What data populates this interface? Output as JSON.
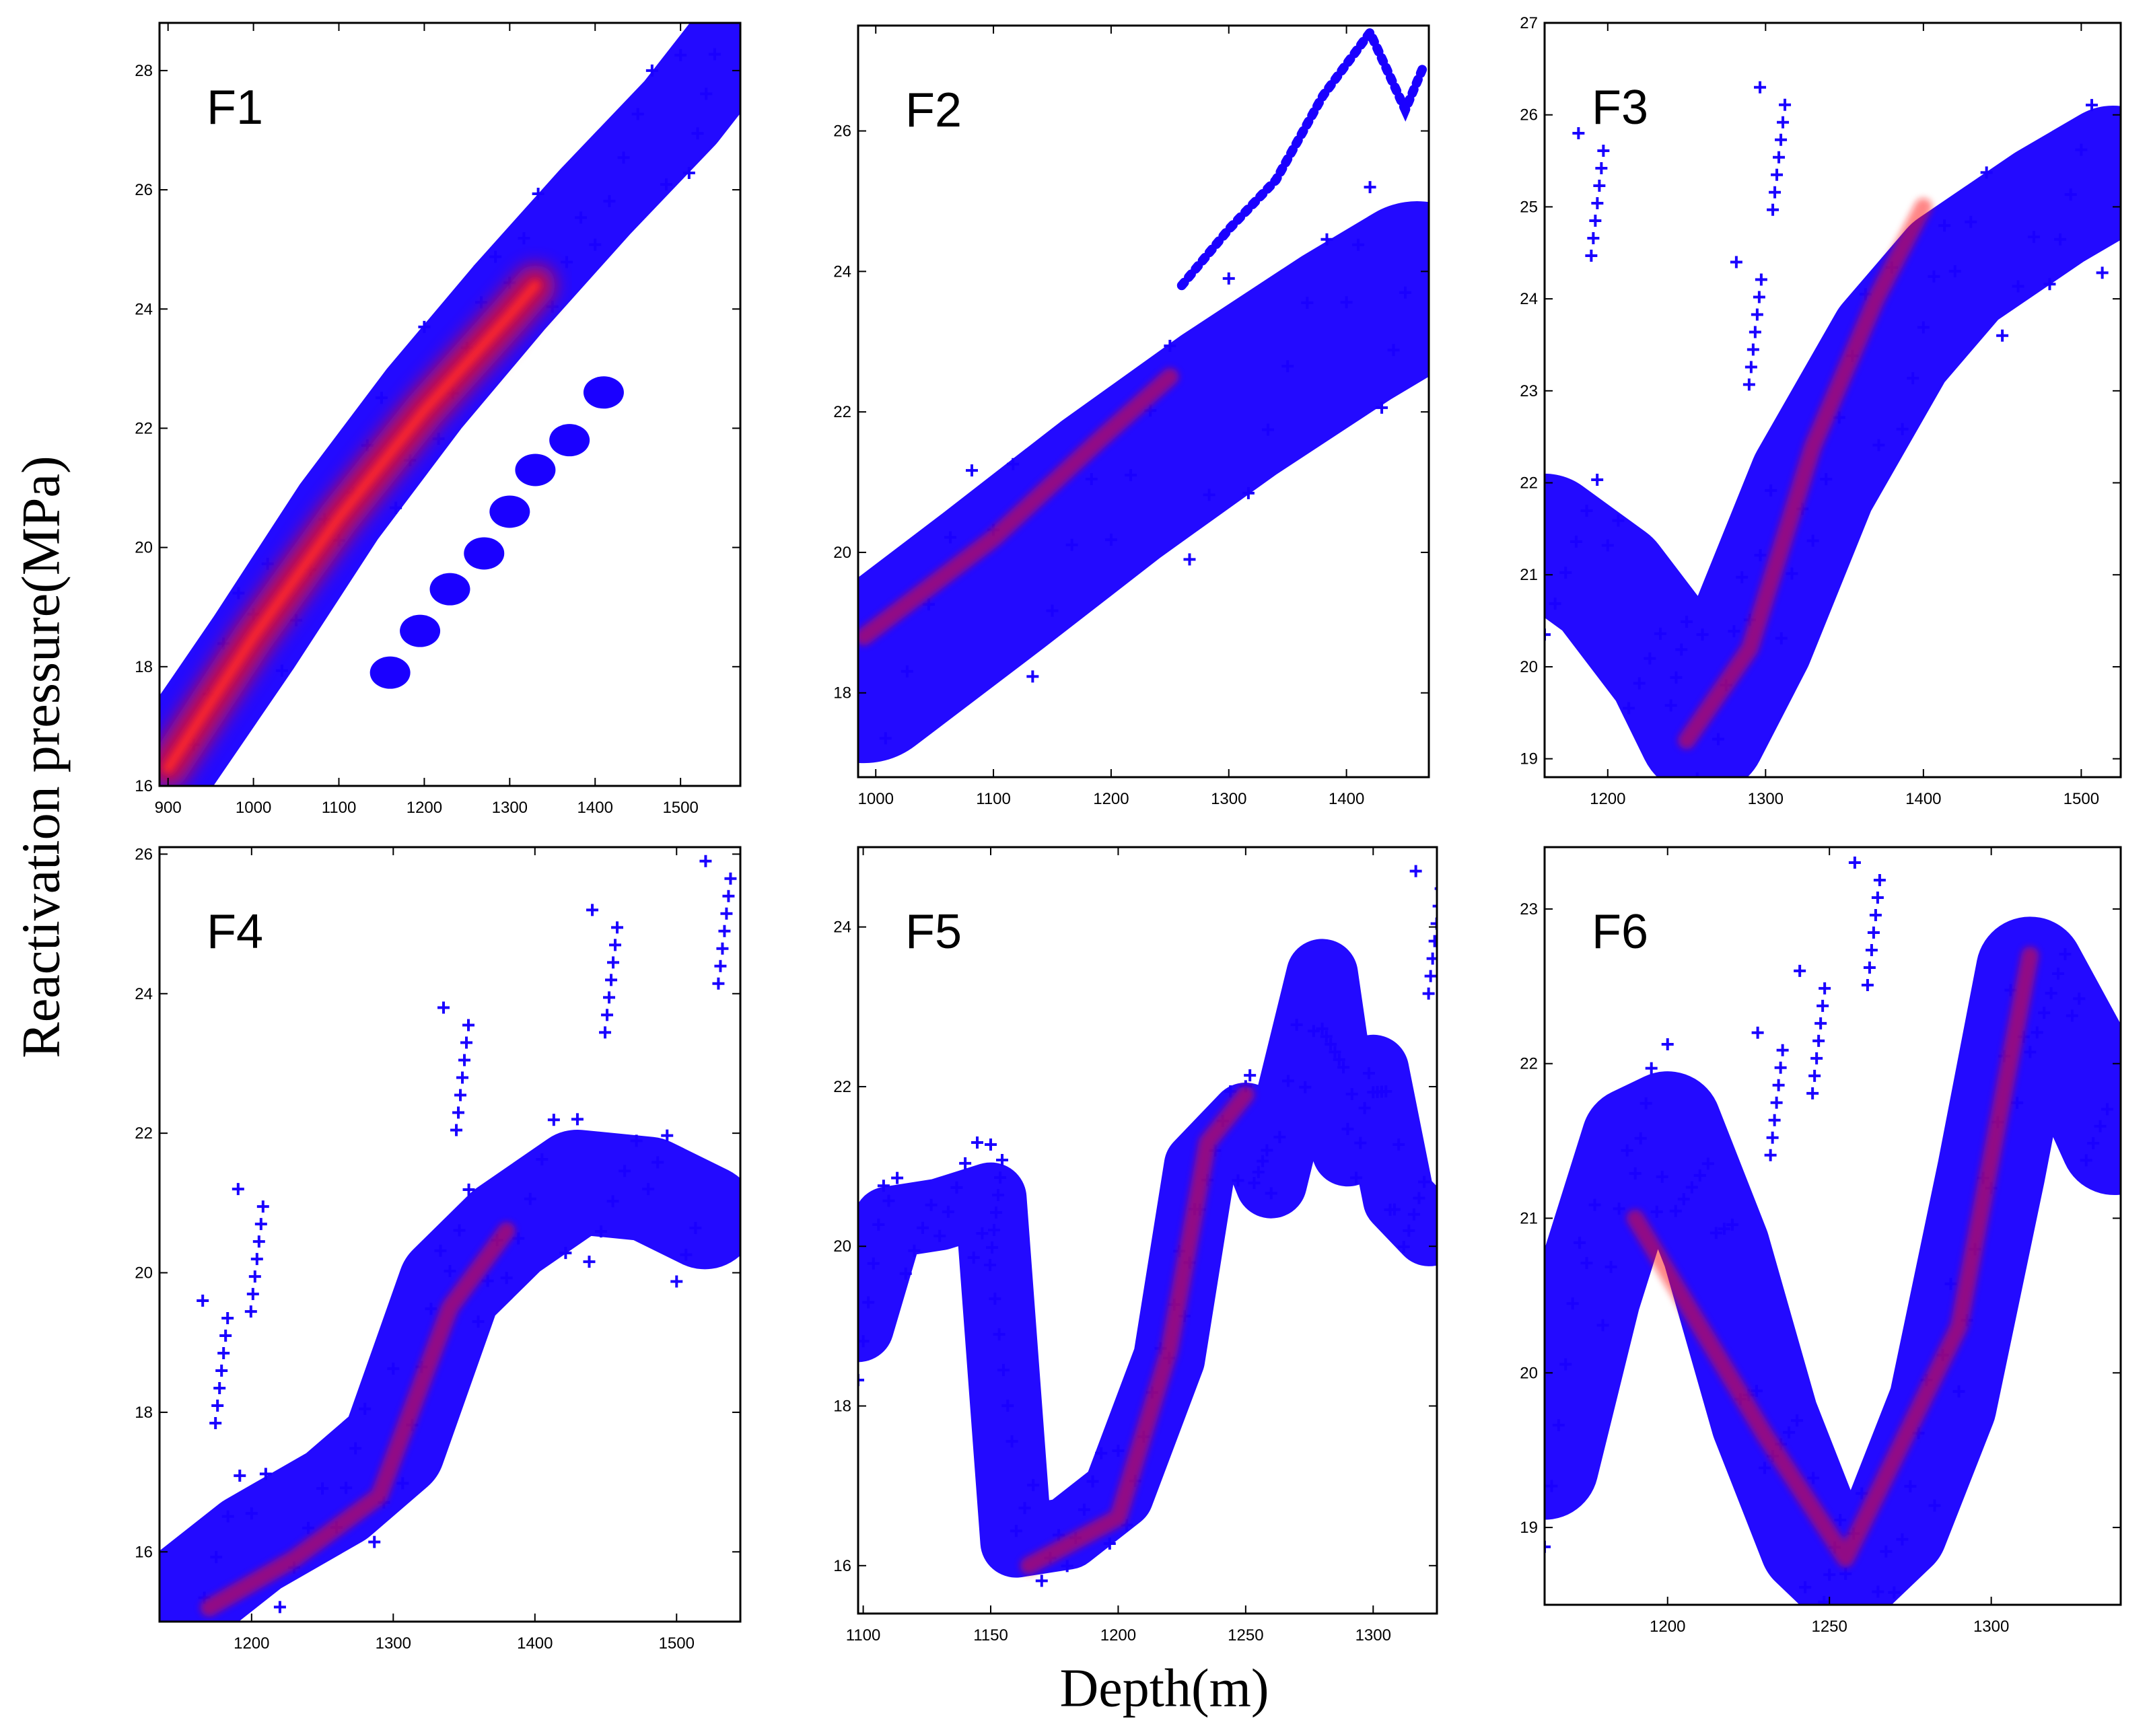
{
  "figure": {
    "ylabel": "Reactivation pressure(MPa)",
    "xlabel": "Depth(m)"
  },
  "colors": {
    "primary": "#1a00ff",
    "hotspot": "#ff1010",
    "frame": "#000000"
  },
  "chart_data": [
    {
      "type": "scatter",
      "title": "F1",
      "xlim": [
        890,
        1570
      ],
      "ylim": [
        16,
        28.8
      ],
      "xticks": [
        900,
        1000,
        1100,
        1200,
        1300,
        1400,
        1500
      ],
      "yticks": [
        16,
        18,
        20,
        22,
        24,
        26,
        28
      ],
      "bands": [
        {
          "points": [
            [
              895,
              16.2
            ],
            [
              1000,
              18.4
            ],
            [
              1100,
              20.6
            ],
            [
              1200,
              22.5
            ],
            [
              1300,
              24.2
            ],
            [
              1400,
              25.8
            ],
            [
              1500,
              27.3
            ],
            [
              1560,
              28.4
            ]
          ],
          "width": 1.6
        }
      ],
      "hotspot": {
        "points": [
          [
            900,
            16.3
          ],
          [
            1000,
            18.5
          ],
          [
            1100,
            20.5
          ],
          [
            1200,
            22.3
          ],
          [
            1300,
            23.9
          ],
          [
            1330,
            24.4
          ]
        ]
      },
      "clusters": [
        [
          1160,
          17.9
        ],
        [
          1195,
          18.6
        ],
        [
          1230,
          19.3
        ],
        [
          1270,
          19.9
        ],
        [
          1300,
          20.6
        ],
        [
          1330,
          21.3
        ],
        [
          1370,
          21.8
        ],
        [
          1410,
          22.6
        ]
      ]
    },
    {
      "type": "scatter",
      "title": "F2",
      "xlim": [
        985,
        1470
      ],
      "ylim": [
        16.8,
        27.5
      ],
      "xticks": [
        1000,
        1100,
        1200,
        1300,
        1400
      ],
      "yticks": [
        18,
        20,
        22,
        24,
        26
      ],
      "bands": [
        {
          "points": [
            [
              990,
              18.2
            ],
            [
              1100,
              19.6
            ],
            [
              1200,
              20.9
            ],
            [
              1300,
              22.1
            ],
            [
              1400,
              23.2
            ],
            [
              1460,
              23.8
            ]
          ],
          "width": 2.4
        }
      ],
      "hotspot": {
        "points": [
          [
            990,
            18.8
          ],
          [
            1100,
            20.2
          ],
          [
            1190,
            21.6
          ],
          [
            1250,
            22.5
          ]
        ]
      },
      "extra_trace": [
        [
          1260,
          23.8
        ],
        [
          1300,
          24.6
        ],
        [
          1340,
          25.3
        ],
        [
          1380,
          26.5
        ],
        [
          1420,
          27.4
        ],
        [
          1450,
          26.3
        ],
        [
          1465,
          26.9
        ]
      ]
    },
    {
      "type": "scatter",
      "title": "F3",
      "xlim": [
        1160,
        1525
      ],
      "ylim": [
        18.8,
        27
      ],
      "xticks": [
        1200,
        1300,
        1400,
        1500
      ],
      "yticks": [
        19,
        20,
        21,
        22,
        23,
        24,
        25,
        26,
        27
      ],
      "bands": [
        {
          "points": [
            [
              1160,
              21.4
            ],
            [
              1200,
              20.9
            ],
            [
              1240,
              20.0
            ],
            [
              1260,
              19.3
            ],
            [
              1290,
              20.3
            ],
            [
              1330,
              22.0
            ],
            [
              1380,
              23.5
            ],
            [
              1420,
              24.3
            ],
            [
              1480,
              25.0
            ],
            [
              1520,
              25.4
            ]
          ],
          "width": 1.4
        }
      ],
      "hotspot": {
        "points": [
          [
            1250,
            19.2
          ],
          [
            1290,
            20.2
          ],
          [
            1330,
            22.4
          ],
          [
            1370,
            24.0
          ],
          [
            1400,
            25.0
          ]
        ]
      },
      "spikes": [
        [
          1190,
          25.8
        ],
        [
          1305,
          26.3
        ],
        [
          1290,
          24.4
        ]
      ]
    },
    {
      "type": "scatter",
      "title": "F4",
      "xlim": [
        1135,
        1545
      ],
      "ylim": [
        15,
        26.1
      ],
      "xticks": [
        1200,
        1300,
        1400,
        1500
      ],
      "yticks": [
        16,
        18,
        20,
        22,
        24,
        26
      ],
      "bands": [
        {
          "points": [
            [
              1150,
              15.3
            ],
            [
              1200,
              16.1
            ],
            [
              1260,
              16.8
            ],
            [
              1300,
              17.5
            ],
            [
              1340,
              19.8
            ],
            [
              1380,
              20.6
            ],
            [
              1430,
              21.3
            ],
            [
              1480,
              21.2
            ],
            [
              1520,
              20.8
            ]
          ],
          "width": 1.5
        }
      ],
      "hotspot": {
        "points": [
          [
            1170,
            15.2
          ],
          [
            1230,
            15.9
          ],
          [
            1290,
            16.8
          ],
          [
            1340,
            19.5
          ],
          [
            1380,
            20.6
          ]
        ]
      },
      "spikes": [
        [
          1200,
          21.2
        ],
        [
          1345,
          23.8
        ],
        [
          1450,
          25.2
        ],
        [
          1530,
          25.9
        ],
        [
          1175,
          19.6
        ]
      ]
    },
    {
      "type": "scatter",
      "title": "F5",
      "xlim": [
        1098,
        1325
      ],
      "ylim": [
        15.4,
        25
      ],
      "xticks": [
        1100,
        1150,
        1200,
        1250,
        1300
      ],
      "yticks": [
        16,
        18,
        20,
        22,
        24
      ],
      "bands": [
        {
          "points": [
            [
              1098,
              19.0
            ],
            [
              1110,
              20.3
            ],
            [
              1130,
              20.4
            ],
            [
              1150,
              20.6
            ],
            [
              1160,
              16.3
            ],
            [
              1180,
              16.4
            ],
            [
              1200,
              16.9
            ],
            [
              1220,
              18.6
            ],
            [
              1232,
              21.0
            ],
            [
              1250,
              21.6
            ],
            [
              1260,
              20.8
            ],
            [
              1280,
              23.4
            ],
            [
              1290,
              21.2
            ],
            [
              1300,
              22.2
            ],
            [
              1310,
              20.6
            ],
            [
              1322,
              20.2
            ]
          ],
          "width": 0.9
        }
      ],
      "hotspot": {
        "points": [
          [
            1165,
            16.0
          ],
          [
            1200,
            16.6
          ],
          [
            1220,
            18.7
          ],
          [
            1235,
            21.3
          ],
          [
            1250,
            21.9
          ]
        ]
      },
      "spikes": [
        [
          1322,
          24.7
        ],
        [
          1150,
          21.3
        ]
      ]
    },
    {
      "type": "scatter",
      "title": "F6",
      "xlim": [
        1162,
        1340
      ],
      "ylim": [
        18.5,
        23.4
      ],
      "xticks": [
        1200,
        1250,
        1300
      ],
      "yticks": [
        19,
        20,
        21,
        22,
        23
      ],
      "bands": [
        {
          "points": [
            [
              1162,
              19.4
            ],
            [
              1175,
              20.5
            ],
            [
              1190,
              21.5
            ],
            [
              1200,
              21.6
            ],
            [
              1215,
              20.8
            ],
            [
              1230,
              19.7
            ],
            [
              1245,
              18.9
            ],
            [
              1255,
              18.7
            ],
            [
              1270,
              19.0
            ],
            [
              1285,
              19.8
            ],
            [
              1300,
              21.3
            ],
            [
              1312,
              22.6
            ],
            [
              1325,
              22.1
            ],
            [
              1338,
              21.5
            ]
          ],
          "width": 0.7
        }
      ],
      "hotspot": {
        "points": [
          [
            1190,
            21.0
          ],
          [
            1230,
            19.6
          ],
          [
            1255,
            18.8
          ],
          [
            1290,
            20.3
          ],
          [
            1312,
            22.7
          ]
        ]
      },
      "spikes": [
        [
          1245,
          22.6
        ],
        [
          1262,
          23.3
        ],
        [
          1232,
          22.2
        ]
      ]
    }
  ]
}
